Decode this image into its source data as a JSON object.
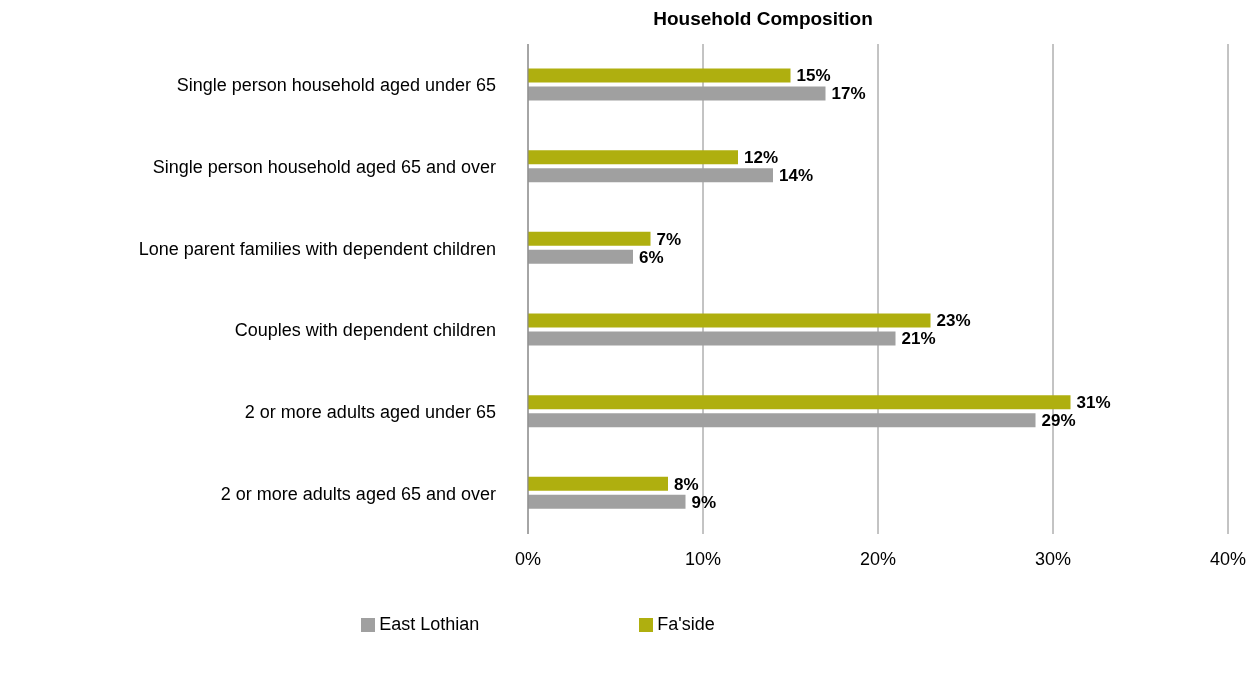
{
  "chart_data": {
    "type": "bar",
    "orientation": "horizontal",
    "title": "Household Composition",
    "categories": [
      "Single person household aged under 65",
      "Single person household aged 65 and over",
      "Lone parent families with dependent children",
      "Couples with dependent children",
      "2 or more adults aged under 65",
      "2 or more adults aged 65 and over"
    ],
    "series": [
      {
        "name": "Fa'side",
        "color": "#afaf0f",
        "values": [
          15,
          12,
          7,
          23,
          31,
          8
        ],
        "value_labels": [
          "15%",
          "12%",
          "7%",
          "23%",
          "31%",
          "8%"
        ]
      },
      {
        "name": "East Lothian",
        "color": "#a0a0a0",
        "values": [
          17,
          14,
          6,
          21,
          29,
          9
        ],
        "value_labels": [
          "17%",
          "14%",
          "6%",
          "21%",
          "29%",
          "9%"
        ]
      }
    ],
    "xlim": [
      0,
      40
    ],
    "xticks": [
      {
        "value": 0,
        "label": "0%"
      },
      {
        "value": 10,
        "label": "10%"
      },
      {
        "value": 20,
        "label": "20%"
      },
      {
        "value": 30,
        "label": "30%"
      },
      {
        "value": 40,
        "label": "40%"
      }
    ],
    "grid": "x",
    "legend": "bottom"
  }
}
